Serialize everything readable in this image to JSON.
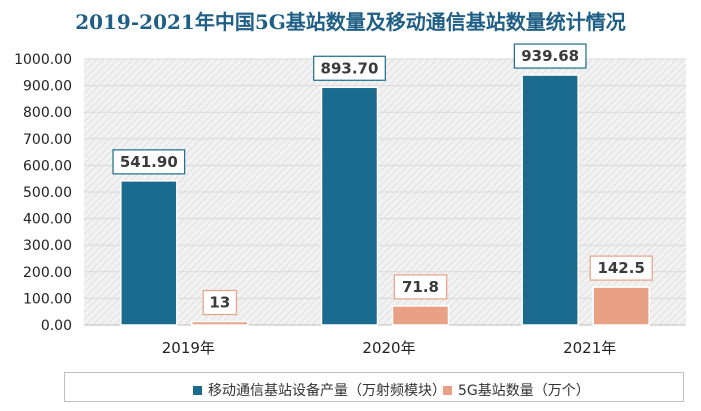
{
  "chart_data": {
    "type": "bar",
    "title": "2019-2021年中国5G基站数量及移动通信基站数量统计情况",
    "categories": [
      "2019年",
      "2020年",
      "2021年"
    ],
    "series": [
      {
        "name": "移动通信基站设备产量（万射频模块）",
        "values": [
          541.9,
          893.7,
          939.68
        ],
        "labels": [
          "541.90",
          "893.70",
          "939.68"
        ],
        "color": "#1a6b8e"
      },
      {
        "name": "5G基站数量（万个）",
        "values": [
          13,
          71.8,
          142.5
        ],
        "labels": [
          "13",
          "71.8",
          "142.5"
        ],
        "color": "#e8a184"
      }
    ],
    "yticks": [
      "0.00",
      "100.00",
      "200.00",
      "300.00",
      "400.00",
      "500.00",
      "600.00",
      "700.00",
      "800.00",
      "900.00",
      "1000.00"
    ],
    "ylim": [
      0,
      1000
    ],
    "grid": true,
    "legend_position": "bottom",
    "plot_background": "hatched light gray"
  }
}
